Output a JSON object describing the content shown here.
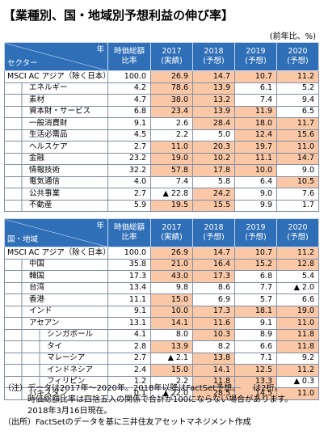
{
  "header": {
    "title": "【業種別、国・地域別予想利益の伸び率】",
    "unit": "(前年比、%)"
  },
  "tables": [
    {
      "corner_top": "年",
      "corner_bottom": "セクター",
      "columns": [
        [
          "時価総額",
          "比率"
        ],
        [
          "2017",
          "(実績)"
        ],
        [
          "2018",
          "(予想)"
        ],
        [
          "2019",
          "(予想)"
        ],
        [
          "2020",
          "(予想)"
        ]
      ],
      "total": {
        "label": "MSCI AC アジア（除く日本）",
        "cells": [
          "100.0",
          "26.9",
          "14.7",
          "10.7",
          "11.2"
        ]
      },
      "rows": [
        {
          "label": "エネルギー",
          "cells": [
            "4.2",
            "78.6",
            "13.9",
            "6.1",
            "5.2"
          ]
        },
        {
          "label": "素材",
          "cells": [
            "4.7",
            "38.0",
            "13.2",
            "7.4",
            "9.4"
          ]
        },
        {
          "label": "資本財・サービス",
          "cells": [
            "6.8",
            "23.4",
            "13.9",
            "11.9",
            "6.5"
          ]
        },
        {
          "label": "一般消費財",
          "cells": [
            "9.1",
            "2.6",
            "28.4",
            "18.0",
            "11.7"
          ]
        },
        {
          "label": "生活必需品",
          "cells": [
            "4.5",
            "2.2",
            "5.0",
            "12.4",
            "15.6"
          ]
        },
        {
          "label": "ヘルスケア",
          "cells": [
            "2.7",
            "11.0",
            "20.3",
            "19.7",
            "11.0"
          ]
        },
        {
          "label": "金融",
          "cells": [
            "23.2",
            "19.0",
            "10.2",
            "11.1",
            "14.7"
          ]
        },
        {
          "label": "情報技術",
          "cells": [
            "32.2",
            "57.8",
            "17.8",
            "10.0",
            "9.0"
          ]
        },
        {
          "label": "電気通信",
          "cells": [
            "4.0",
            "7.4",
            "5.8",
            "6.4",
            "10.5"
          ]
        },
        {
          "label": "公共事業",
          "cells": [
            "2.7",
            "▲ 22.8",
            "24.2",
            "9.0",
            "7.6"
          ]
        },
        {
          "label": "不動産",
          "cells": [
            "5.9",
            "19.5",
            "15.5",
            "9.9",
            "1.7"
          ]
        }
      ]
    },
    {
      "corner_top": "年",
      "corner_bottom": "国・地域",
      "columns": [
        [
          "時価総額",
          "比率"
        ],
        [
          "2017",
          "(実績)"
        ],
        [
          "2018",
          "(予想)"
        ],
        [
          "2019",
          "(予想)"
        ],
        [
          "2020",
          "(予想)"
        ]
      ],
      "total": {
        "label": "MSCI AC アジア（除く日本）",
        "cells": [
          "100.0",
          "26.9",
          "14.7",
          "10.7",
          "11.2"
        ]
      },
      "rows": [
        {
          "label": "中国",
          "cells": [
            "35.8",
            "21.0",
            "16.4",
            "15.2",
            "12.8"
          ]
        },
        {
          "label": "韓国",
          "cells": [
            "17.3",
            "43.0",
            "17.3",
            "6.8",
            "5.4"
          ]
        },
        {
          "label": "台湾",
          "cells": [
            "13.4",
            "9.8",
            "8.6",
            "7.7",
            "▲ 2.0"
          ]
        },
        {
          "label": "香港",
          "cells": [
            "11.1",
            "15.0",
            "6.9",
            "5.7",
            "6.6"
          ]
        },
        {
          "label": "インド",
          "cells": [
            "9.1",
            "10.0",
            "17.3",
            "18.1",
            "19.0"
          ]
        },
        {
          "label": "アセアン",
          "cells": [
            "13.1",
            "14.1",
            "11.6",
            "9.1",
            "11.0"
          ],
          "children": [
            {
              "label": "シンガポール",
              "cells": [
                "4.1",
                "8.0",
                "10.3",
                "8.9",
                "11.8"
              ]
            },
            {
              "label": "タイ",
              "cells": [
                "2.8",
                "13.9",
                "8.2",
                "6.6",
                "11.8"
              ]
            },
            {
              "label": "マレーシア",
              "cells": [
                "2.7",
                "▲ 2.1",
                "13.8",
                "7.1",
                "9.2"
              ]
            },
            {
              "label": "インドネシア",
              "cells": [
                "2.4",
                "15.0",
                "14.1",
                "12.5",
                "11.2"
              ]
            },
            {
              "label": "フィリピン",
              "cells": [
                "1.2",
                "2.2",
                "11.8",
                "13.3",
                "▲ 0.3"
              ]
            }
          ]
        },
        {
          "label": "パキスタン",
          "cells": [
            "0.1",
            "▲ 22.0",
            "28.5",
            "14.5",
            "11.0"
          ]
        }
      ]
    }
  ],
  "notes": {
    "label": "（注）",
    "line1": [
      "データは2017年～2020年。2018年以降はFactSet予想。",
      "は2桁。"
    ],
    "lines": [
      "時価総額比率は四捨五入の関係で合計が100にならない場合があります。",
      "2018年3月16日現在。"
    ]
  },
  "source": {
    "label": "（出所）",
    "text": "FactSetのデータを基に三井住友アセットマネジメント作成"
  }
}
